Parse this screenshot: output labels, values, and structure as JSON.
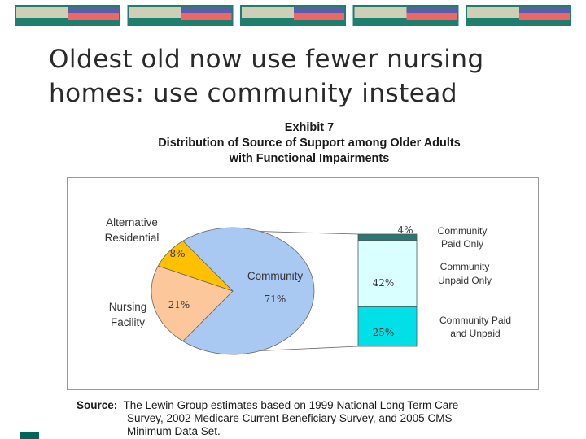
{
  "slide": {
    "title_line1": "Oldest old now use fewer nursing",
    "title_line2": "homes: use community instead"
  },
  "exhibit": {
    "line1": "Exhibit 7",
    "line2": "Distribution of Source of Support among Older Adults",
    "line3": "with Functional Impairments"
  },
  "source": {
    "label": "Source:",
    "line1": "The Lewin Group estimates based on 1999 National Long Term Care",
    "line2": "Survey, 2002 Medicare Current Beneficiary Survey, and 2005 CMS",
    "line3": "Minimum Data Set."
  },
  "colors": {
    "community": "#a9c9f3",
    "alternative": "#ffc000",
    "nursing": "#fcc79b",
    "paid_only": "#2a7873",
    "unpaid_only": "#d9ffff",
    "paid_and_unpaid": "#00e0e6",
    "bar_teal": "#1f7f6f",
    "bar_gray": "#cfcfb8",
    "bar_blue": "#5a5ea6",
    "bar_red": "#ee6666"
  },
  "chart_data": {
    "type": "pie",
    "slices": [
      {
        "label": "Community",
        "value": 71,
        "display": "71%"
      },
      {
        "label": "Nursing Facility",
        "value": 21,
        "display": "21%"
      },
      {
        "label": "Alternative Residential",
        "value": 8,
        "display": "8%"
      }
    ],
    "breakdown": {
      "of": "Community",
      "segments": [
        {
          "label_line1": "Community",
          "label_line2": "Paid Only",
          "value": 4,
          "display": "4%"
        },
        {
          "label_line1": "Community",
          "label_line2": "Unpaid Only",
          "value": 42,
          "display": "42%"
        },
        {
          "label_line1": "Community Paid",
          "label_line2": "and Unpaid",
          "value": 25,
          "display": "25%"
        }
      ]
    },
    "pie_labels": {
      "alt_line1": "Alternative",
      "alt_line2": "Residential",
      "nursing_line1": "Nursing",
      "nursing_line2": "Facility",
      "community": "Community"
    }
  }
}
